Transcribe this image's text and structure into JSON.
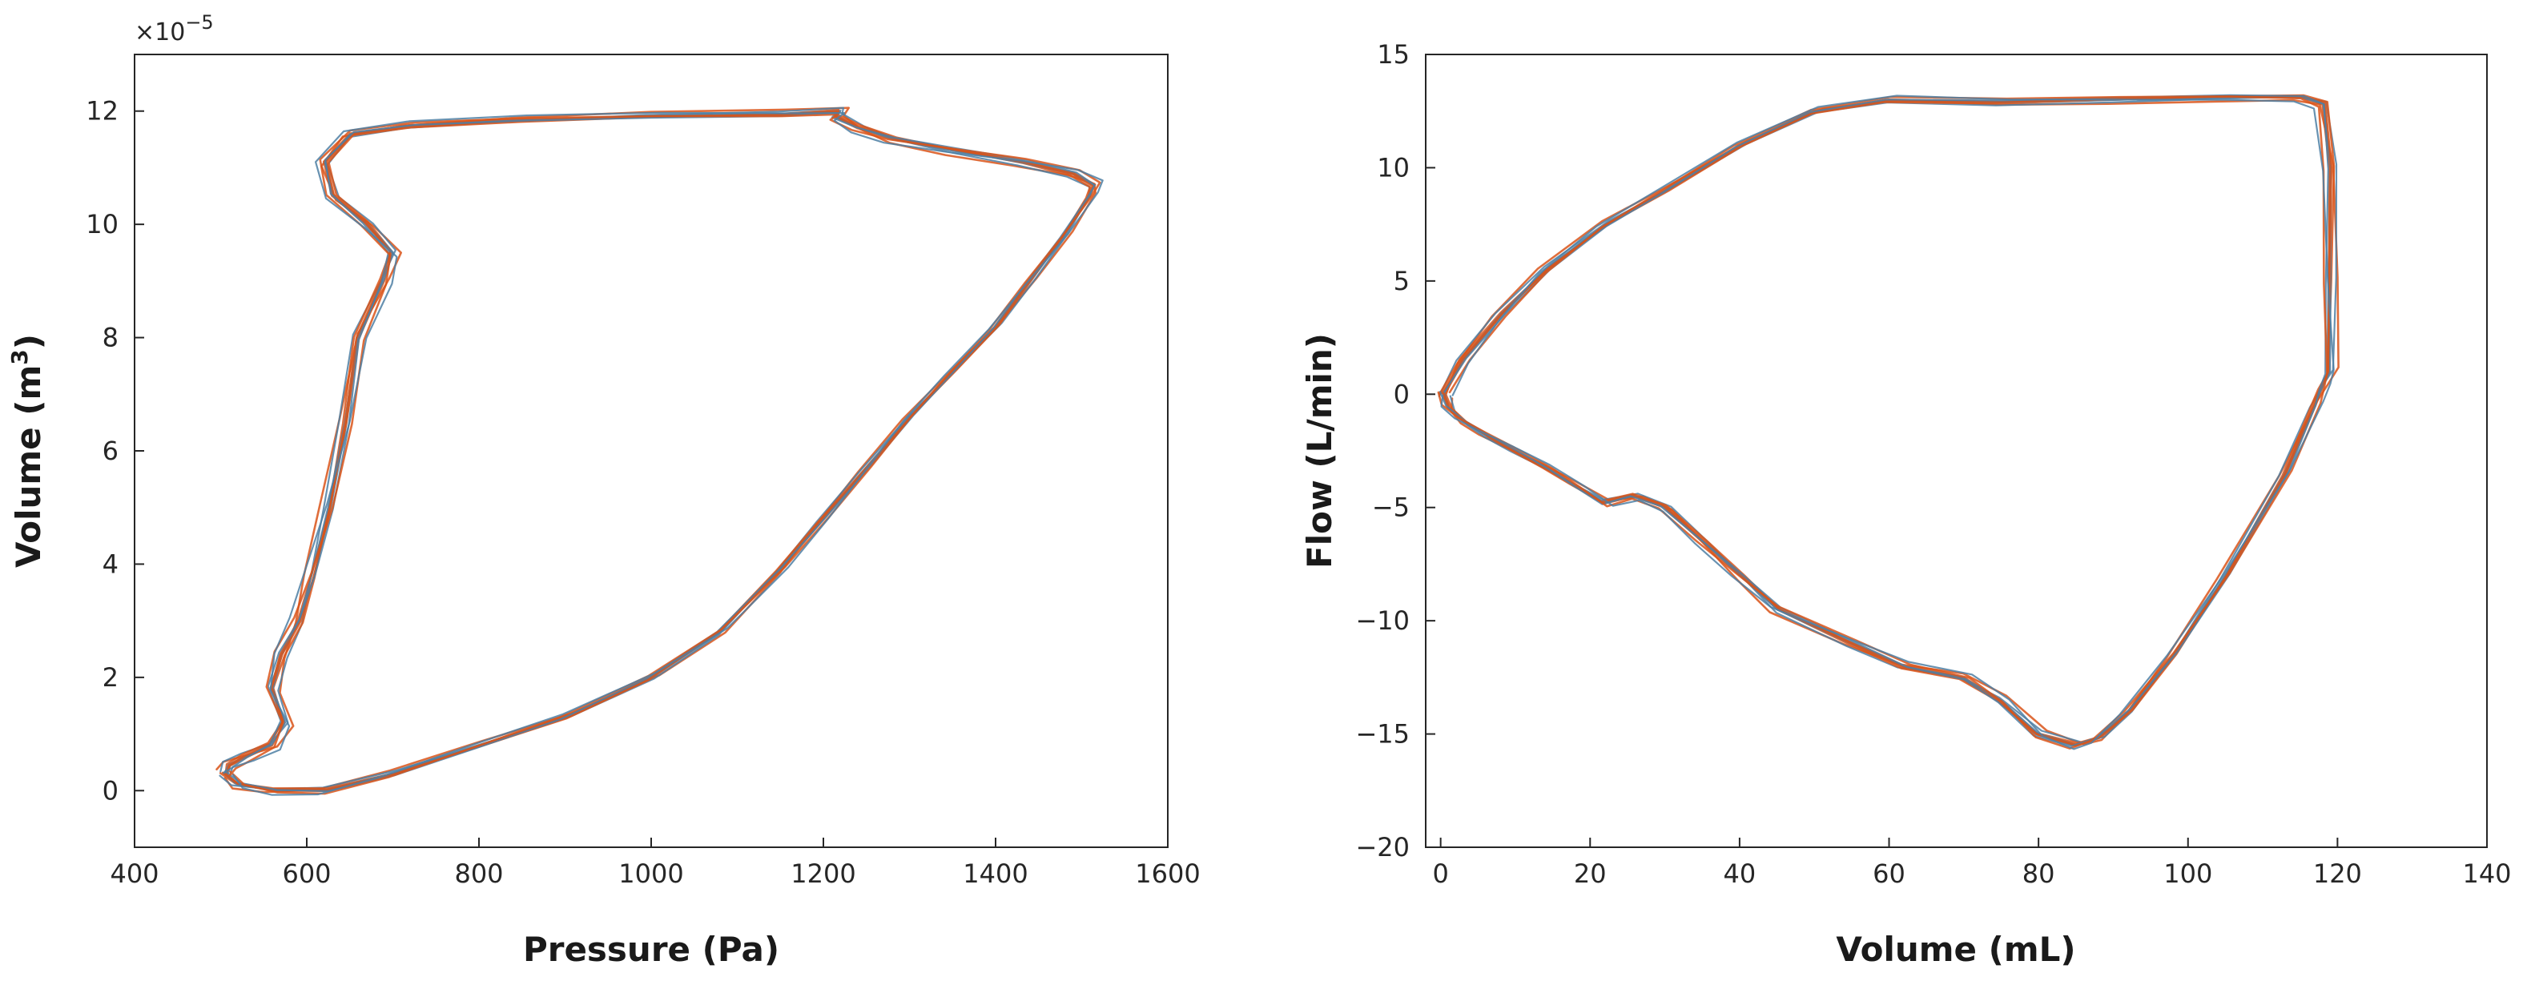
{
  "chart_data": [
    {
      "type": "line",
      "xlabel": "Pressure (Pa)",
      "ylabel_base": "Volume (m",
      "ylabel_sup": "3",
      "ylabel_end": ")",
      "y_multiplier": "×10",
      "y_multiplier_exp": "−5",
      "xlim": [
        400,
        1600
      ],
      "ylim": [
        -1,
        13
      ],
      "xticks": [
        400,
        600,
        800,
        1000,
        1200,
        1400,
        1600
      ],
      "yticks": [
        0,
        2,
        4,
        6,
        8,
        10,
        12
      ],
      "grid": false,
      "series_colors": [
        "#d95319",
        "#4d7fa3"
      ],
      "loop_count": 10,
      "loop_reference": {
        "x": [
          505,
          520,
          560,
          620,
          700,
          800,
          900,
          1000,
          1080,
          1150,
          1200,
          1250,
          1300,
          1350,
          1400,
          1440,
          1480,
          1510,
          1515,
          1490,
          1430,
          1350,
          1280,
          1240,
          1215,
          1220,
          1150,
          1000,
          850,
          720,
          650,
          620,
          630,
          670,
          700,
          690,
          660,
          645,
          625,
          605,
          590,
          570,
          560,
          575,
          560,
          530,
          510,
          505
        ],
        "y": [
          0.3,
          0.1,
          0.0,
          0.0,
          0.3,
          0.8,
          1.3,
          2.0,
          2.8,
          3.9,
          4.8,
          5.7,
          6.6,
          7.4,
          8.2,
          9.0,
          9.8,
          10.5,
          10.7,
          10.9,
          11.1,
          11.3,
          11.5,
          11.7,
          11.9,
          12.0,
          11.95,
          11.92,
          11.85,
          11.75,
          11.6,
          11.1,
          10.5,
          10.0,
          9.5,
          9.0,
          8.0,
          6.5,
          5.0,
          3.8,
          3.0,
          2.4,
          1.8,
          1.2,
          0.8,
          0.6,
          0.45,
          0.3
        ]
      }
    },
    {
      "type": "line",
      "xlabel": "Volume (mL)",
      "ylabel": "Flow (L/min)",
      "xlim": [
        -2,
        140
      ],
      "ylim": [
        -20,
        15
      ],
      "xticks": [
        0,
        20,
        40,
        60,
        80,
        100,
        120,
        140
      ],
      "yticks": [
        -20,
        -15,
        -10,
        -5,
        0,
        5,
        10,
        15
      ],
      "grid": false,
      "series_colors": [
        "#d95319",
        "#4d7fa3"
      ],
      "loop_count": 10,
      "loop_reference": {
        "x": [
          0.5,
          3,
          8,
          14,
          22,
          30,
          40,
          50,
          60,
          75,
          90,
          105,
          115,
          118,
          119,
          119,
          119,
          118,
          117,
          113,
          105,
          98,
          92,
          88,
          85,
          80,
          75,
          70,
          62,
          55,
          45,
          40,
          35,
          30,
          26,
          22,
          18,
          14,
          10,
          6,
          3,
          1,
          0.5
        ],
        "y": [
          0.0,
          1.5,
          3.5,
          5.5,
          7.5,
          9.0,
          11.0,
          12.5,
          13.0,
          12.9,
          13.0,
          13.1,
          13.1,
          12.8,
          10.0,
          5.0,
          1.0,
          0.3,
          -0.5,
          -3.5,
          -8.0,
          -11.5,
          -14.0,
          -15.2,
          -15.5,
          -15.0,
          -13.5,
          -12.5,
          -12.0,
          -11.0,
          -9.5,
          -8.0,
          -6.5,
          -5.0,
          -4.5,
          -4.8,
          -4.0,
          -3.2,
          -2.5,
          -1.8,
          -1.2,
          -0.6,
          0.0
        ]
      }
    }
  ]
}
